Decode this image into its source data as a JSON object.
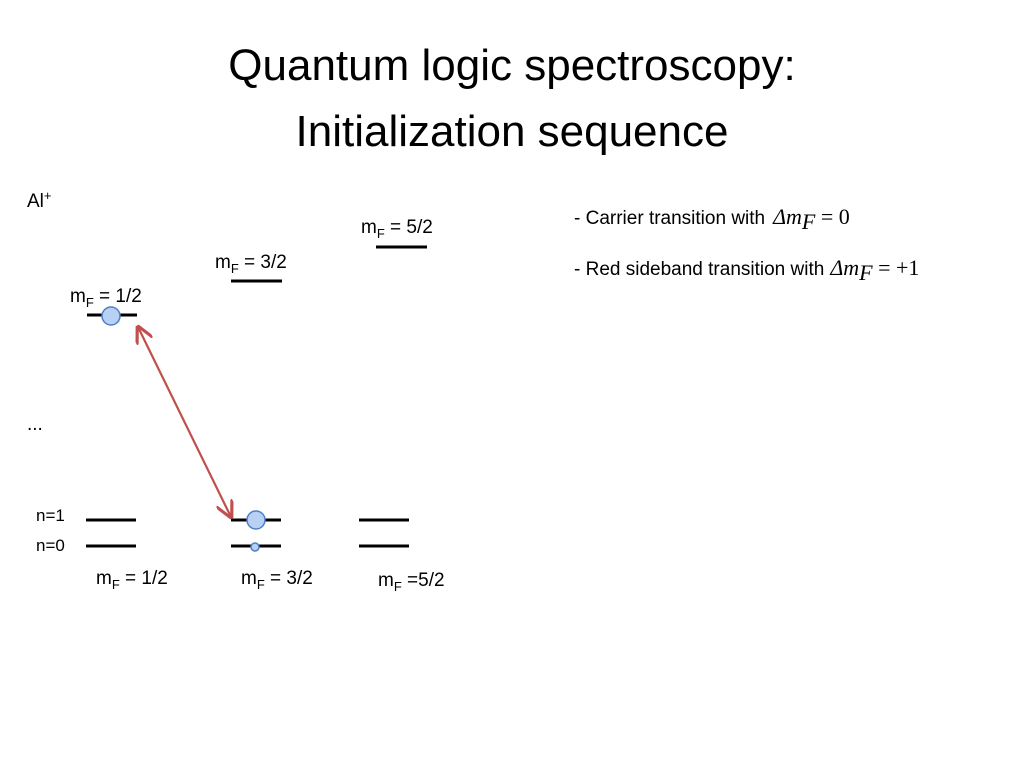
{
  "title": [
    "Quantum logic spectroscopy:",
    "Initialization sequence"
  ],
  "ion": {
    "symbol": "Al",
    "charge": "+"
  },
  "upper_levels": [
    {
      "m": "m",
      "sub": "F",
      "rest": " = 1/2"
    },
    {
      "m": "m",
      "sub": "F",
      "rest": " = 3/2"
    },
    {
      "m": "m",
      "sub": "F",
      "rest": " = 5/2"
    }
  ],
  "ellipsis": "...",
  "motional_levels": [
    "n=1",
    "n=0"
  ],
  "lower_levels": [
    {
      "m": "m",
      "sub": "F",
      "rest": " = 1/2"
    },
    {
      "m": "m",
      "sub": "F",
      "rest": " = 3/2"
    },
    {
      "m": "m",
      "sub": "F",
      "rest": " =5/2"
    }
  ],
  "notes": [
    {
      "text": "- Carrier transition with",
      "formula": {
        "symbol": "Δm",
        "sub": "F",
        "rest": " = 0"
      }
    },
    {
      "text": "- Red sideband transition with",
      "formula": {
        "symbol": "Δm",
        "sub": "F",
        "rest": " = +1"
      }
    }
  ]
}
